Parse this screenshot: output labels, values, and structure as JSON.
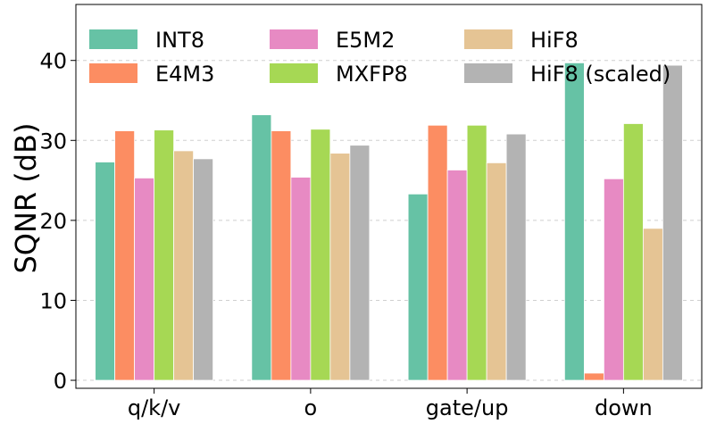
{
  "chart_data": {
    "type": "bar",
    "title": "",
    "xlabel": "",
    "ylabel": "SQNR (dB)",
    "ylim": [
      -1,
      47
    ],
    "yticks": [
      0,
      10,
      20,
      30,
      40
    ],
    "grid": true,
    "legend_position": "top",
    "categories": [
      "q/k/v",
      "o",
      "gate/up",
      "down"
    ],
    "series": [
      {
        "name": "INT8",
        "color": "#66c2a5",
        "values": [
          27.3,
          33.2,
          23.3,
          39.7
        ]
      },
      {
        "name": "E4M3",
        "color": "#fc8d62",
        "values": [
          31.2,
          31.2,
          31.9,
          0.9
        ]
      },
      {
        "name": "E5M2",
        "color": "#e78ac3",
        "values": [
          25.3,
          25.4,
          26.3,
          25.2
        ]
      },
      {
        "name": "MXFP8",
        "color": "#a6d854",
        "values": [
          31.3,
          31.4,
          31.9,
          32.1
        ]
      },
      {
        "name": "HiF8",
        "color": "#e5c494",
        "values": [
          28.7,
          28.4,
          27.2,
          19.0
        ]
      },
      {
        "name": "HiF8 (scaled)",
        "color": "#b3b3b3",
        "values": [
          27.7,
          29.4,
          30.8,
          39.4
        ]
      }
    ]
  }
}
